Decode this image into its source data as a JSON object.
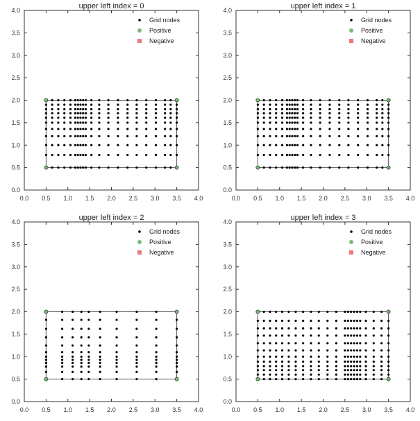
{
  "colors": {
    "grid_nodes": "#000000",
    "positive": "#77bb77",
    "negative": "#ee7777",
    "outline": "#555555",
    "axes": "#333333"
  },
  "chart_data": [
    {
      "type": "scatter",
      "title": "upper left index = 0",
      "xlim": [
        0,
        4
      ],
      "ylim": [
        0,
        4
      ],
      "xticks": [
        "0.0",
        "0.5",
        "1.0",
        "1.5",
        "2.0",
        "2.5",
        "3.0",
        "3.5",
        "4.0"
      ],
      "yticks": [
        "0.0",
        "0.5",
        "1.0",
        "1.5",
        "2.0",
        "2.5",
        "3.0",
        "3.5",
        "4.0"
      ],
      "legend": [
        "Grid nodes",
        "Positive",
        "Negative"
      ],
      "legend_position": "top-right",
      "rectangle": {
        "x": [
          0.5,
          3.5
        ],
        "y": [
          0.5,
          2.0
        ]
      },
      "grid_x": [
        0.5,
        0.64,
        0.78,
        0.92,
        1.06,
        1.17,
        1.23,
        1.29,
        1.35,
        1.41,
        1.54,
        1.72,
        1.93,
        2.15,
        2.37,
        2.58,
        2.8,
        3.02,
        3.23,
        3.36,
        3.5
      ],
      "grid_y": [
        0.5,
        0.78,
        1.0,
        1.2,
        1.36,
        1.5,
        1.61,
        1.71,
        1.8,
        1.9,
        2.0
      ],
      "positive": [
        [
          0.5,
          0.5
        ],
        [
          3.5,
          0.5
        ],
        [
          0.5,
          2.0
        ],
        [
          3.5,
          2.0
        ]
      ],
      "negative": []
    },
    {
      "type": "scatter",
      "title": "upper left index = 1",
      "xlim": [
        0,
        4
      ],
      "ylim": [
        0,
        4
      ],
      "xticks": [
        "0.0",
        "0.5",
        "1.0",
        "1.5",
        "2.0",
        "2.5",
        "3.0",
        "3.5",
        "4.0"
      ],
      "yticks": [
        "0.0",
        "0.5",
        "1.0",
        "1.5",
        "2.0",
        "2.5",
        "3.0",
        "3.5",
        "4.0"
      ],
      "legend": [
        "Grid nodes",
        "Positive",
        "Negative"
      ],
      "legend_position": "top-right",
      "rectangle": {
        "x": [
          0.5,
          3.5
        ],
        "y": [
          0.5,
          2.0
        ]
      },
      "grid_x": [
        0.5,
        0.64,
        0.78,
        0.92,
        1.06,
        1.17,
        1.23,
        1.29,
        1.35,
        1.41,
        1.54,
        1.72,
        1.93,
        2.15,
        2.37,
        2.58,
        2.8,
        3.02,
        3.23,
        3.36,
        3.5
      ],
      "grid_y": [
        0.5,
        0.78,
        1.0,
        1.2,
        1.36,
        1.5,
        1.61,
        1.71,
        1.8,
        1.9,
        2.0
      ],
      "positive": [
        [
          0.5,
          0.5
        ],
        [
          3.5,
          0.5
        ],
        [
          0.5,
          2.0
        ],
        [
          3.5,
          2.0
        ]
      ],
      "negative": []
    },
    {
      "type": "scatter",
      "title": "upper left index = 2",
      "xlim": [
        0,
        4
      ],
      "ylim": [
        0,
        4
      ],
      "xticks": [
        "0.0",
        "0.5",
        "1.0",
        "1.5",
        "2.0",
        "2.5",
        "3.0",
        "3.5",
        "4.0"
      ],
      "yticks": [
        "0.0",
        "0.5",
        "1.0",
        "1.5",
        "2.0",
        "2.5",
        "3.0",
        "3.5",
        "4.0"
      ],
      "legend": [
        "Grid nodes",
        "Positive",
        "Negative"
      ],
      "legend_position": "top-right",
      "rectangle": {
        "x": [
          0.5,
          3.5
        ],
        "y": [
          0.5,
          2.0
        ]
      },
      "grid_x": [
        0.5,
        0.87,
        1.11,
        1.31,
        1.48,
        1.74,
        2.12,
        2.58,
        3.03,
        3.5
      ],
      "grid_y": [
        0.5,
        0.66,
        0.78,
        0.86,
        0.93,
        1.0,
        1.1,
        1.25,
        1.43,
        1.62,
        1.82,
        2.0
      ],
      "positive": [
        [
          0.5,
          0.5
        ],
        [
          3.5,
          0.5
        ],
        [
          0.5,
          2.0
        ],
        [
          3.5,
          2.0
        ]
      ],
      "negative": []
    },
    {
      "type": "scatter",
      "title": "upper left index = 3",
      "xlim": [
        0,
        4
      ],
      "ylim": [
        0,
        4
      ],
      "xticks": [
        "0.0",
        "0.5",
        "1.0",
        "1.5",
        "2.0",
        "2.5",
        "3.0",
        "3.5",
        "4.0"
      ],
      "yticks": [
        "0.0",
        "0.5",
        "1.0",
        "1.5",
        "2.0",
        "2.5",
        "3.0",
        "3.5",
        "4.0"
      ],
      "legend": [
        "Grid nodes",
        "Positive",
        "Negative"
      ],
      "legend_position": "top-right",
      "rectangle": {
        "x": [
          0.5,
          3.5
        ],
        "y": [
          0.5,
          2.0
        ]
      },
      "grid_x": [
        0.5,
        0.64,
        0.78,
        0.92,
        1.06,
        1.21,
        1.37,
        1.54,
        1.72,
        1.9,
        2.1,
        2.3,
        2.5,
        2.57,
        2.64,
        2.71,
        2.78,
        2.85,
        2.98,
        3.16,
        3.34,
        3.5
      ],
      "grid_y": [
        0.5,
        0.6,
        0.7,
        0.79,
        0.89,
        1.0,
        1.14,
        1.3,
        1.47,
        1.63,
        1.8,
        2.0
      ],
      "positive": [
        [
          0.5,
          0.5
        ],
        [
          3.5,
          0.5
        ],
        [
          0.5,
          2.0
        ],
        [
          3.5,
          2.0
        ]
      ],
      "negative": []
    }
  ]
}
